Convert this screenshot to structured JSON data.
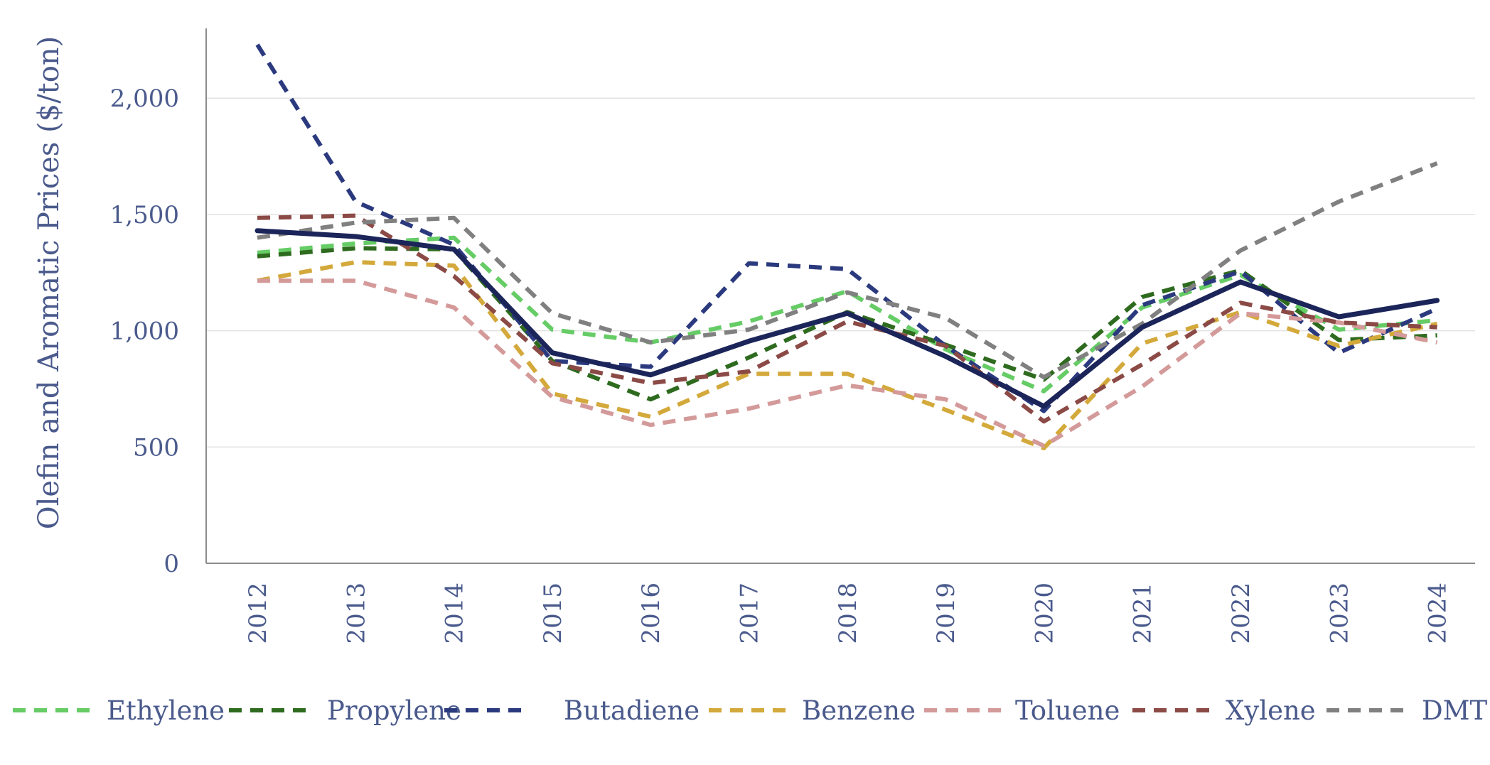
{
  "chart_data": {
    "type": "line",
    "title": "",
    "ylabel": "Olefin and Aromatic Prices ($/ton)",
    "xlabel": "",
    "categories": [
      "2012",
      "2013",
      "2014",
      "2015",
      "2016",
      "2017",
      "2018",
      "2019",
      "2020",
      "2021",
      "2022",
      "2023",
      "2024"
    ],
    "ylim": [
      0,
      2300
    ],
    "yticks": [
      0,
      500,
      1000,
      1500,
      2000
    ],
    "ytick_labels": [
      "0",
      "500",
      "1,000",
      "1,500",
      "2,000"
    ],
    "grid": "horizontal",
    "legend_position": "bottom",
    "series": [
      {
        "name": "Ethylene",
        "color": "#66cc66",
        "style": "dashed",
        "values": [
          1335,
          1375,
          1400,
          1005,
          950,
          1040,
          1170,
          920,
          740,
          1100,
          1240,
          1005,
          1045
        ]
      },
      {
        "name": "Propylene",
        "color": "#2e6b1f",
        "style": "dashed",
        "values": [
          1320,
          1355,
          1350,
          870,
          705,
          885,
          1080,
          940,
          790,
          1145,
          1260,
          960,
          980
        ]
      },
      {
        "name": "Butadiene",
        "color": "#2b3a7e",
        "style": "dashed",
        "values": [
          2230,
          1555,
          1370,
          870,
          845,
          1290,
          1265,
          935,
          655,
          1110,
          1255,
          905,
          1095
        ]
      },
      {
        "name": "Benzene",
        "color": "#d4a93b",
        "style": "dashed",
        "values": [
          1215,
          1295,
          1280,
          730,
          630,
          815,
          815,
          660,
          495,
          945,
          1080,
          935,
          1030
        ]
      },
      {
        "name": "Toluene",
        "color": "#d49a9a",
        "style": "dashed",
        "values": [
          1215,
          1215,
          1100,
          715,
          595,
          665,
          765,
          705,
          505,
          760,
          1075,
          1035,
          950
        ]
      },
      {
        "name": "Xylene",
        "color": "#8b4a46",
        "style": "dashed",
        "values": [
          1485,
          1495,
          1235,
          860,
          775,
          825,
          1040,
          935,
          610,
          855,
          1120,
          1035,
          1015
        ]
      },
      {
        "name": "DMT",
        "color": "#808080",
        "style": "dashed",
        "values": [
          1400,
          1465,
          1485,
          1075,
          950,
          1005,
          1165,
          1055,
          800,
          1030,
          1345,
          1555,
          1720
        ]
      },
      {
        "name": "",
        "color": "#1c2559",
        "style": "solid",
        "values": [
          1430,
          1405,
          1350,
          905,
          810,
          955,
          1075,
          890,
          675,
          1015,
          1210,
          1060,
          1130
        ]
      }
    ]
  }
}
